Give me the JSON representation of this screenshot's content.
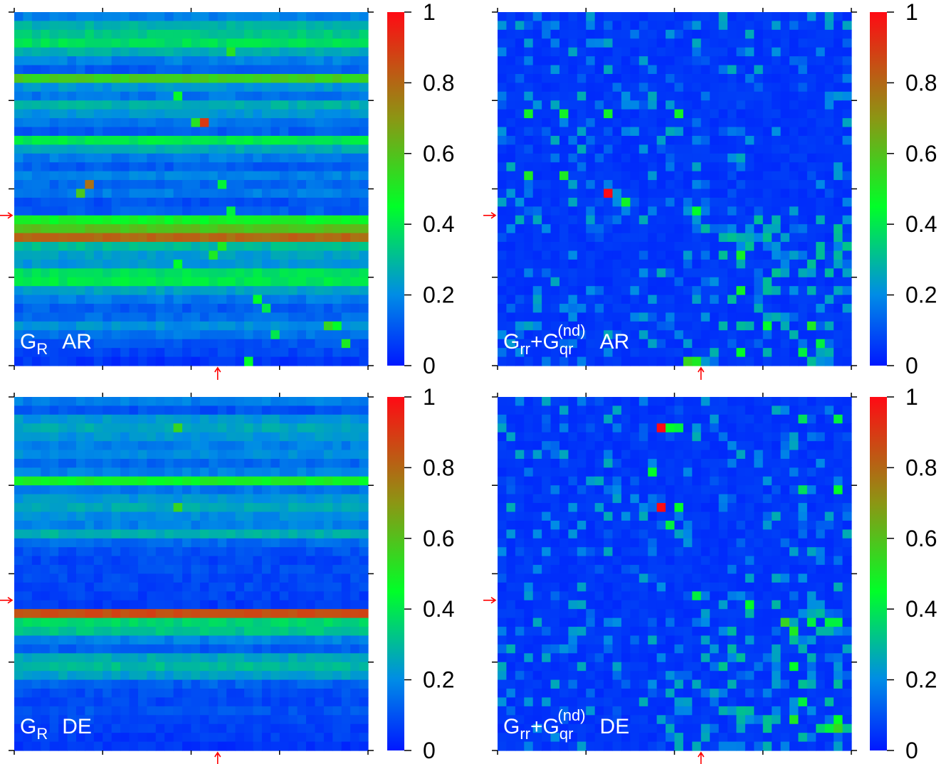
{
  "chart_data": [
    {
      "type": "heatmap",
      "label_main": "G",
      "label_sub": "R",
      "label_sup": "",
      "label_tail": "AR",
      "plus_part": "",
      "grid": "none",
      "n_rows": 40,
      "n_cols": 40,
      "color_range": [
        0,
        1
      ],
      "arrow_row": 23,
      "arrow_col": 23,
      "row_base": [
        0.18,
        0.28,
        0.33,
        0.38,
        0.27,
        0.18,
        0.12,
        0.56,
        0.22,
        0.16,
        0.28,
        0.22,
        0.16,
        0.12,
        0.4,
        0.26,
        0.17,
        0.12,
        0.18,
        0.14,
        0.17,
        0.1,
        0.12,
        0.48,
        0.6,
        0.8,
        0.3,
        0.24,
        0.22,
        0.38,
        0.4,
        0.24,
        0.17,
        0.12,
        0.14,
        0.21,
        0.16,
        0.1,
        0.08,
        0.05
      ],
      "cells": [
        [
          20,
          7,
          0.58
        ],
        [
          19,
          8,
          0.78
        ],
        [
          12,
          21,
          0.9
        ],
        [
          22,
          24,
          0.42
        ],
        [
          4,
          24,
          0.52
        ],
        [
          9,
          18,
          0.46
        ],
        [
          12,
          20,
          0.52
        ],
        [
          11,
          40,
          0.45
        ],
        [
          19,
          23,
          0.43
        ],
        [
          28,
          18,
          0.45
        ],
        [
          27,
          22,
          0.5
        ],
        [
          26,
          23,
          0.5
        ],
        [
          32,
          27,
          0.45
        ],
        [
          35,
          35,
          0.55
        ],
        [
          37,
          37,
          0.5
        ],
        [
          35,
          36,
          0.45
        ],
        [
          39,
          26,
          0.45
        ],
        [
          33,
          28,
          0.4
        ],
        [
          36,
          29,
          0.4
        ]
      ],
      "colorbar_ticks": [
        "1",
        "0.8",
        "0.6",
        "0.4",
        "0.2",
        "0"
      ]
    },
    {
      "type": "heatmap",
      "label_main": "G",
      "label_sub": "rr",
      "label_sup": "",
      "label_tail": "AR",
      "plus_part": "+G",
      "plus_sub": "qr",
      "plus_sup": "(nd)",
      "grid": "none",
      "n_rows": 40,
      "n_cols": 40,
      "color_range": [
        0,
        1
      ],
      "arrow_row": 23,
      "arrow_col": 23,
      "row_base": [],
      "cells": [
        [
          20,
          12,
          1.0
        ],
        [
          11,
          3,
          0.48
        ],
        [
          18,
          3,
          0.5
        ],
        [
          11,
          7,
          0.48
        ],
        [
          18,
          7,
          0.5
        ],
        [
          11,
          12,
          0.48
        ],
        [
          21,
          14,
          0.48
        ],
        [
          11,
          20,
          0.48
        ],
        [
          22,
          22,
          0.45
        ],
        [
          39,
          22,
          0.5
        ],
        [
          39,
          21,
          0.55
        ],
        [
          35,
          30,
          0.45
        ],
        [
          38,
          27,
          0.45
        ],
        [
          38,
          34,
          0.42
        ],
        [
          27,
          27,
          0.48
        ],
        [
          31,
          27,
          0.48
        ],
        [
          35,
          35,
          0.5
        ],
        [
          37,
          36,
          0.42
        ]
      ],
      "colorbar_ticks": [
        "1",
        "0.8",
        "0.6",
        "0.4",
        "0.2",
        "0"
      ]
    },
    {
      "type": "heatmap",
      "label_main": "G",
      "label_sub": "R",
      "label_sup": "",
      "label_tail": "DE",
      "plus_part": "",
      "grid": "none",
      "n_rows": 40,
      "n_cols": 40,
      "color_range": [
        0,
        1
      ],
      "arrow_row": 23,
      "arrow_col": 23,
      "row_base": [
        0.18,
        0.1,
        0.22,
        0.26,
        0.22,
        0.18,
        0.2,
        0.14,
        0.18,
        0.48,
        0.16,
        0.22,
        0.26,
        0.2,
        0.18,
        0.28,
        0.14,
        0.1,
        0.08,
        0.09,
        0.08,
        0.08,
        0.07,
        0.06,
        0.86,
        0.36,
        0.32,
        0.18,
        0.12,
        0.26,
        0.3,
        0.24,
        0.12,
        0.09,
        0.08,
        0.1,
        0.08,
        0.07,
        0.06,
        0.05
      ],
      "cells": [
        [
          3,
          18,
          0.55
        ],
        [
          12,
          18,
          0.55
        ]
      ],
      "colorbar_ticks": [
        "1",
        "0.8",
        "0.6",
        "0.4",
        "0.2",
        "0"
      ]
    },
    {
      "type": "heatmap",
      "label_main": "G",
      "label_sub": "rr",
      "label_sup": "",
      "label_tail": "DE",
      "plus_part": "+G",
      "plus_sub": "qr",
      "plus_sup": "(nd)",
      "grid": "none",
      "n_rows": 40,
      "n_cols": 40,
      "color_range": [
        0,
        1
      ],
      "arrow_row": 23,
      "arrow_col": 23,
      "row_base": [],
      "cells": [
        [
          3,
          18,
          1.0
        ],
        [
          12,
          18,
          1.0
        ],
        [
          3,
          19,
          0.45
        ],
        [
          3,
          20,
          0.42
        ],
        [
          8,
          17,
          0.45
        ],
        [
          12,
          20,
          0.45
        ],
        [
          14,
          19,
          0.42
        ],
        [
          2,
          34,
          0.38
        ],
        [
          2,
          38,
          0.42
        ],
        [
          10,
          34,
          0.38
        ],
        [
          10,
          38,
          0.45
        ],
        [
          22,
          22,
          0.42
        ],
        [
          23,
          28,
          0.45
        ],
        [
          25,
          32,
          0.55
        ],
        [
          26,
          33,
          0.5
        ],
        [
          25,
          35,
          0.42
        ],
        [
          25,
          37,
          0.42
        ],
        [
          25,
          38,
          0.42
        ],
        [
          30,
          33,
          0.45
        ],
        [
          34,
          34,
          0.42
        ],
        [
          37,
          36,
          0.35
        ],
        [
          37,
          37,
          0.42
        ],
        [
          36,
          38,
          0.45
        ],
        [
          36,
          33,
          0.5
        ],
        [
          37,
          38,
          0.55
        ]
      ],
      "colorbar_ticks": [
        "1",
        "0.8",
        "0.6",
        "0.4",
        "0.2",
        "0"
      ]
    }
  ]
}
